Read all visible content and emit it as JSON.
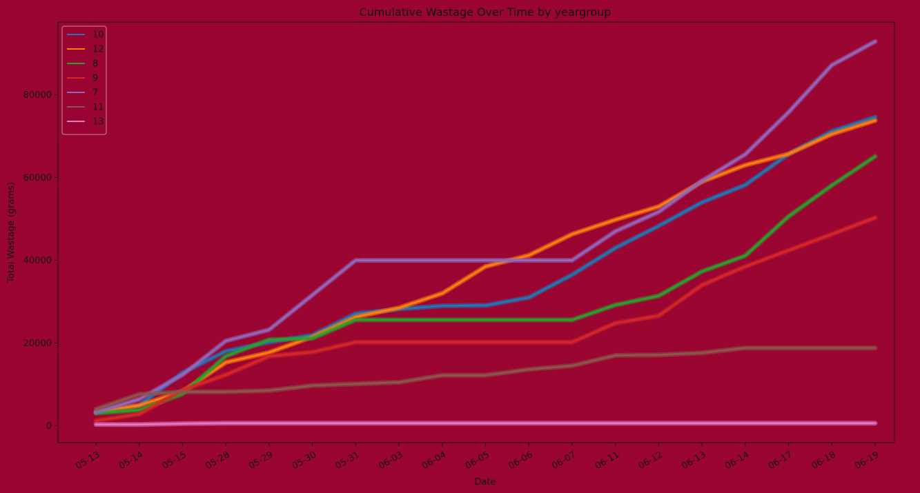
{
  "chart_data": {
    "type": "line",
    "title": "Cumulative Wastage Over Time by yeargroup",
    "xlabel": "Date",
    "ylabel": "Total Wastage (grams)",
    "categories": [
      "05-13",
      "05-14",
      "05-15",
      "05-28",
      "05-29",
      "05-30",
      "05-31",
      "06-03",
      "06-04",
      "06-05",
      "06-06",
      "06-07",
      "06-11",
      "06-12",
      "06-13",
      "06-14",
      "06-17",
      "06-18",
      "06-19"
    ],
    "yticks": [
      0,
      20000,
      40000,
      60000,
      80000
    ],
    "ytick_labels": [
      "0",
      "20000",
      "40000",
      "60000",
      "80000"
    ],
    "ylim": [
      -4100,
      97600
    ],
    "legend_position": "top-left",
    "grid": false,
    "background_color": "#9a0532",
    "series": [
      {
        "name": "10",
        "color": "#1f77b4",
        "values": [
          3300,
          4900,
          12800,
          18000,
          20200,
          21900,
          27100,
          28200,
          29000,
          29100,
          31000,
          36500,
          43000,
          48300,
          54000,
          58200,
          65700,
          71200,
          74600
        ]
      },
      {
        "name": "12",
        "color": "#ff7f0e",
        "values": [
          3300,
          4900,
          8300,
          15300,
          17700,
          21500,
          26300,
          28500,
          32000,
          38500,
          41200,
          46300,
          49800,
          53000,
          59000,
          63000,
          65700,
          70500,
          73800
        ]
      },
      {
        "name": "8",
        "color": "#2ca02c",
        "values": [
          3000,
          3800,
          7700,
          16800,
          20800,
          21100,
          25600,
          25600,
          25600,
          25600,
          25600,
          25600,
          29200,
          31400,
          37300,
          41100,
          50600,
          58100,
          65100
        ]
      },
      {
        "name": "9",
        "color": "#d62728",
        "values": [
          1200,
          2800,
          8600,
          12300,
          16800,
          17800,
          20200,
          20200,
          20200,
          20200,
          20200,
          20200,
          24800,
          26600,
          34000,
          38500,
          42400,
          46300,
          50300
        ]
      },
      {
        "name": "7",
        "color": "#9467bd",
        "values": [
          3300,
          6400,
          12300,
          20500,
          23200,
          31600,
          40000,
          40000,
          40000,
          40000,
          40000,
          40000,
          47000,
          51700,
          59200,
          65600,
          75800,
          87200,
          92900
        ]
      },
      {
        "name": "11",
        "color": "#8c564b",
        "values": [
          4000,
          7600,
          8200,
          8200,
          8500,
          9700,
          10100,
          10500,
          12200,
          12200,
          13600,
          14500,
          17000,
          17100,
          17600,
          18800,
          18800,
          18800,
          18800
        ]
      },
      {
        "name": "13",
        "color": "#e377c2",
        "values": [
          300,
          300,
          500,
          600,
          600,
          600,
          600,
          600,
          600,
          600,
          600,
          600,
          600,
          600,
          600,
          600,
          600,
          600,
          600
        ]
      }
    ]
  }
}
